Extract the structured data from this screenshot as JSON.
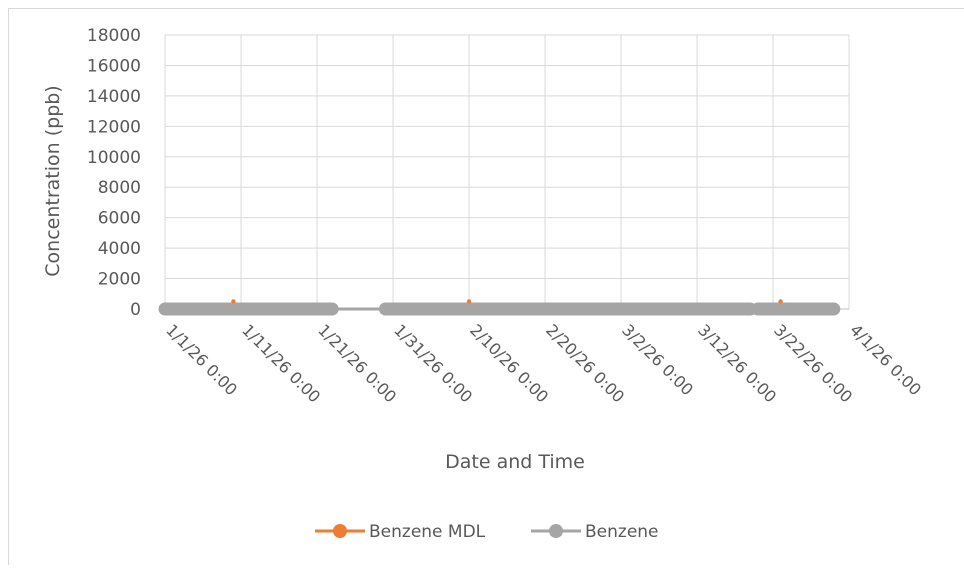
{
  "chart_data": {
    "type": "line",
    "title": "",
    "xlabel": "Date and Time",
    "ylabel": "Concentration (ppb)",
    "ylim": [
      0,
      18000
    ],
    "y_ticks": [
      "0",
      "2000",
      "4000",
      "6000",
      "8000",
      "10000",
      "12000",
      "14000",
      "16000",
      "18000"
    ],
    "x_ticks": [
      "1/1/26 0:00",
      "1/11/26 0:00",
      "1/21/26 0:00",
      "1/31/26 0:00",
      "2/10/26 0:00",
      "2/20/26 0:00",
      "3/2/26 0:00",
      "3/12/26 0:00",
      "3/22/26 0:00",
      "4/1/26 0:00"
    ],
    "xlim": [
      "2026-01-01",
      "2026-04-01"
    ],
    "grid": true,
    "legend_position": "bottom",
    "series": [
      {
        "name": "Benzene MDL",
        "color": "#ed7d31",
        "points": [
          {
            "x": "2026-01-10",
            "y": 100
          },
          {
            "x": "2026-02-10",
            "y": 100
          },
          {
            "x": "2026-03-23",
            "y": 100
          }
        ]
      },
      {
        "name": "Benzene",
        "color": "#a5a5a5",
        "segments": [
          [
            "2026-01-01",
            "2026-01-23"
          ],
          [
            "2026-01-30",
            "2026-03-19"
          ],
          [
            "2026-03-20",
            "2026-03-30"
          ]
        ],
        "connector": [
          "2026-01-23",
          "2026-01-30"
        ],
        "value": 0
      }
    ]
  }
}
